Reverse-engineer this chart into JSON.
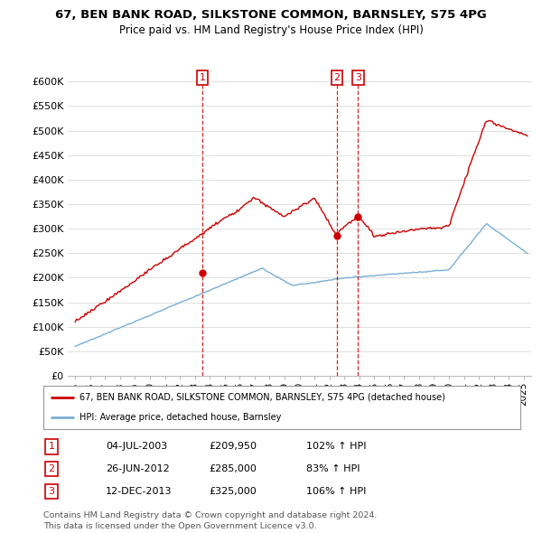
{
  "title_line1": "67, BEN BANK ROAD, SILKSTONE COMMON, BARNSLEY, S75 4PG",
  "title_line2": "Price paid vs. HM Land Registry's House Price Index (HPI)",
  "ylabel_ticks": [
    "£0",
    "£50K",
    "£100K",
    "£150K",
    "£200K",
    "£250K",
    "£300K",
    "£350K",
    "£400K",
    "£450K",
    "£500K",
    "£550K",
    "£600K"
  ],
  "ytick_vals": [
    0,
    50000,
    100000,
    150000,
    200000,
    250000,
    300000,
    350000,
    400000,
    450000,
    500000,
    550000,
    600000
  ],
  "ylim": [
    0,
    625000
  ],
  "xlim_start": 1994.5,
  "xlim_end": 2025.5,
  "sale_color": "#cc0000",
  "hpi_color": "#7bafd4",
  "sale_dates": [
    2003.5,
    2012.5,
    2013.92
  ],
  "sale_prices": [
    209950,
    285000,
    325000
  ],
  "legend_sale_label": "67, BEN BANK ROAD, SILKSTONE COMMON, BARNSLEY, S75 4PG (detached house)",
  "legend_hpi_label": "HPI: Average price, detached house, Barnsley",
  "annotation_labels": [
    "1",
    "2",
    "3"
  ],
  "table_rows": [
    [
      "1",
      "04-JUL-2003",
      "£209,950",
      "102% ↑ HPI"
    ],
    [
      "2",
      "26-JUN-2012",
      "£285,000",
      "83% ↑ HPI"
    ],
    [
      "3",
      "12-DEC-2013",
      "£325,000",
      "106% ↑ HPI"
    ]
  ],
  "footer_text": "Contains HM Land Registry data © Crown copyright and database right 2024.\nThis data is licensed under the Open Government Licence v3.0.",
  "background_color": "#ffffff",
  "grid_color": "#e0e0e0"
}
